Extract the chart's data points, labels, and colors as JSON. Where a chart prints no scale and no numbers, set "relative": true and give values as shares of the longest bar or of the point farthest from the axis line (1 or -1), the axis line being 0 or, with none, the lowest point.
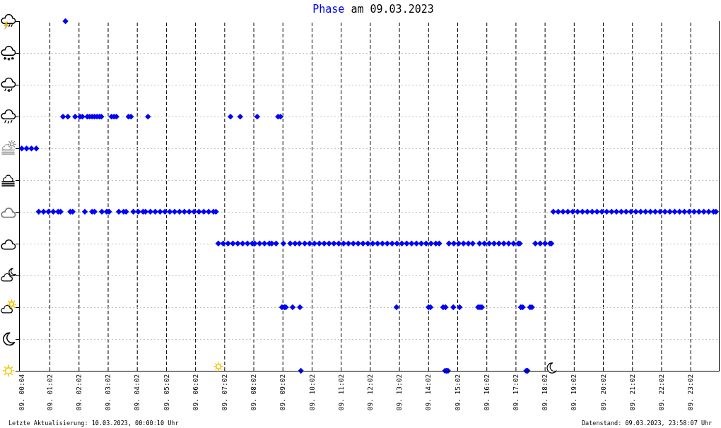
{
  "chart_data": {
    "type": "scatter",
    "title": "am 09.03.2023",
    "annotations": [
      "Letzte Aktualisierung: 10.03.2023, 00:00:10 Uhr",
      "Datenstand: 09.03.2023, 23:58:07 Uhr"
    ],
    "relative": true,
    "grid": true,
    "marker": "diamond",
    "tick_labels": "x",
    "xlim": [
      "2023-03-09T00:00",
      "2023-03-10T00:00"
    ],
    "xticks": [
      {
        "value": "2023-03-09T00:04",
        "label": "09. 00:04"
      },
      {
        "value": "2023-03-09T01:02",
        "label": "09. 01:02"
      },
      {
        "value": "2023-03-09T02:02",
        "label": "09. 02:02"
      },
      {
        "value": "2023-03-09T03:02",
        "label": "09. 03:02"
      },
      {
        "value": "2023-03-09T04:02",
        "label": "09. 04:02"
      },
      {
        "value": "2023-03-09T05:02",
        "label": "09. 05:02"
      },
      {
        "value": "2023-03-09T06:02",
        "label": "09. 06:02"
      },
      {
        "value": "2023-03-09T07:02",
        "label": "09. 07:02"
      },
      {
        "value": "2023-03-09T08:02",
        "label": "09. 08:02"
      },
      {
        "value": "2023-03-09T09:02",
        "label": "09. 09:02"
      },
      {
        "value": "2023-03-09T10:02",
        "label": "09. 10:02"
      },
      {
        "value": "2023-03-09T11:02",
        "label": "09. 11:02"
      },
      {
        "value": "2023-03-09T12:02",
        "label": "09. 12:02"
      },
      {
        "value": "2023-03-09T13:02",
        "label": "09. 13:02"
      },
      {
        "value": "2023-03-09T14:02",
        "label": "09. 14:02"
      },
      {
        "value": "2023-03-09T15:02",
        "label": "09. 15:02"
      },
      {
        "value": "2023-03-09T16:02",
        "label": "09. 16:02"
      },
      {
        "value": "2023-03-09T17:02",
        "label": "09. 17:02"
      },
      {
        "value": "2023-03-09T18:02",
        "label": "09. 18:02"
      },
      {
        "value": "2023-03-09T19:02",
        "label": "09. 19:02"
      },
      {
        "value": "2023-03-09T20:02",
        "label": "09. 20:02"
      },
      {
        "value": "2023-03-09T21:02",
        "label": "09. 21:02"
      },
      {
        "value": "2023-03-09T22:02",
        "label": "09. 22:02"
      },
      {
        "value": "2023-03-09T23:02",
        "label": "09. 23:02"
      }
    ],
    "x": [
      "2023-03-09T00:04",
      "2023-03-09T00:14",
      "2023-03-09T00:24",
      "2023-03-09T00:34",
      "2023-03-09T00:39",
      "2023-03-09T00:49",
      "2023-03-09T00:59",
      "2023-03-09T01:09",
      "2023-03-09T01:19",
      "2023-03-09T01:24",
      "2023-03-09T01:29",
      "2023-03-09T01:34",
      "2023-03-09T01:39",
      "2023-03-09T01:44",
      "2023-03-09T01:49",
      "2023-03-09T01:54",
      "2023-03-09T02:04",
      "2023-03-09T02:09",
      "2023-03-09T02:14",
      "2023-03-09T02:19",
      "2023-03-09T02:24",
      "2023-03-09T02:29",
      "2023-03-09T02:34",
      "2023-03-09T02:39",
      "2023-03-09T02:44",
      "2023-03-09T02:29",
      "2023-03-09T02:34",
      "2023-03-09T02:48",
      "2023-03-09T02:49",
      "2023-03-09T02:59",
      "2023-03-09T03:04",
      "2023-03-09T03:09",
      "2023-03-09T03:14",
      "2023-03-09T03:19",
      "2023-03-09T03:24",
      "2023-03-09T03:34",
      "2023-03-09T03:39",
      "2023-03-09T03:44",
      "2023-03-09T03:49",
      "2023-03-09T03:54",
      "2023-03-09T04:04",
      "2023-03-09T04:14",
      "2023-03-09T04:19",
      "2023-03-09T04:24",
      "2023-03-09T04:29",
      "2023-03-09T04:39",
      "2023-03-09T04:49",
      "2023-03-09T04:59",
      "2023-03-09T05:09",
      "2023-03-09T05:19",
      "2023-03-09T05:29",
      "2023-03-09T05:39",
      "2023-03-09T05:49",
      "2023-03-09T05:59",
      "2023-03-09T06:09",
      "2023-03-09T06:19",
      "2023-03-09T06:29",
      "2023-03-09T06:39",
      "2023-03-09T06:44",
      "2023-03-09T06:49",
      "2023-03-09T06:59",
      "2023-03-09T07:09",
      "2023-03-09T07:14",
      "2023-03-09T07:19",
      "2023-03-09T07:29",
      "2023-03-09T07:34",
      "2023-03-09T07:39",
      "2023-03-09T07:49",
      "2023-03-09T07:59",
      "2023-03-09T08:04",
      "2023-03-09T08:09",
      "2023-03-09T08:14",
      "2023-03-09T08:24",
      "2023-03-09T08:34",
      "2023-03-09T08:39",
      "2023-03-09T08:48",
      "2023-03-09T08:52",
      "2023-03-09T08:57",
      "2023-03-09T09:00",
      "2023-03-09T09:03",
      "2023-03-09T09:05",
      "2023-03-09T09:08",
      "2023-03-09T09:17",
      "2023-03-09T09:22",
      "2023-03-09T09:27",
      "2023-03-09T09:36",
      "2023-03-09T09:37",
      "2023-03-09T09:39",
      "2023-03-09T09:47",
      "2023-03-09T09:57",
      "2023-03-09T10:07",
      "2023-03-09T10:17",
      "2023-03-09T10:27",
      "2023-03-09T10:37",
      "2023-03-09T10:47",
      "2023-03-09T10:57",
      "2023-03-09T11:07",
      "2023-03-09T11:17",
      "2023-03-09T11:27",
      "2023-03-09T11:37",
      "2023-03-09T11:47",
      "2023-03-09T11:57",
      "2023-03-09T12:07",
      "2023-03-09T12:17",
      "2023-03-09T12:27",
      "2023-03-09T12:37",
      "2023-03-09T12:47",
      "2023-03-09T12:56",
      "2023-03-09T12:57",
      "2023-03-09T13:07",
      "2023-03-09T13:17",
      "2023-03-09T13:27",
      "2023-03-09T13:37",
      "2023-03-09T13:47",
      "2023-03-09T13:57",
      "2023-03-09T14:02",
      "2023-03-09T14:06",
      "2023-03-09T14:07",
      "2023-03-09T14:17",
      "2023-03-09T14:24",
      "2023-03-09T14:32",
      "2023-03-09T14:36",
      "2023-03-09T14:37",
      "2023-03-09T14:39",
      "2023-03-09T14:42",
      "2023-03-09T14:44",
      "2023-03-09T14:53",
      "2023-03-09T14:54",
      "2023-03-09T15:04",
      "2023-03-09T15:06",
      "2023-03-09T15:14",
      "2023-03-09T15:24",
      "2023-03-09T15:33",
      "2023-03-09T15:44",
      "2023-03-09T15:47",
      "2023-03-09T15:48",
      "2023-03-09T15:52",
      "2023-03-09T15:57",
      "2023-03-09T16:07",
      "2023-03-09T16:17",
      "2023-03-09T16:27",
      "2023-03-09T16:37",
      "2023-03-09T16:47",
      "2023-03-09T16:57",
      "2023-03-09T17:07",
      "2023-03-09T17:10",
      "2023-03-09T17:12",
      "2023-03-09T17:16",
      "2023-03-09T17:23",
      "2023-03-09T17:26",
      "2023-03-09T17:31",
      "2023-03-09T17:35",
      "2023-03-09T17:42",
      "2023-03-09T17:52",
      "2023-03-09T18:02",
      "2023-03-09T18:12",
      "2023-03-09T18:15",
      "2023-03-09T18:19",
      "2023-03-09T18:29",
      "2023-03-09T18:39",
      "2023-03-09T18:49",
      "2023-03-09T18:59",
      "2023-03-09T19:09",
      "2023-03-09T19:19",
      "2023-03-09T19:29",
      "2023-03-09T19:39",
      "2023-03-09T19:49",
      "2023-03-09T19:59",
      "2023-03-09T20:09",
      "2023-03-09T20:19",
      "2023-03-09T20:29",
      "2023-03-09T20:39",
      "2023-03-09T20:49",
      "2023-03-09T20:59",
      "2023-03-09T21:09",
      "2023-03-09T21:19",
      "2023-03-09T21:29",
      "2023-03-09T21:39",
      "2023-03-09T21:49",
      "2023-03-09T21:59",
      "2023-03-09T22:09",
      "2023-03-09T22:19",
      "2023-03-09T22:29",
      "2023-03-09T22:39",
      "2023-03-09T22:49",
      "2023-03-09T22:59",
      "2023-03-09T23:09",
      "2023-03-09T23:19",
      "2023-03-09T23:29",
      "2023-03-09T23:39",
      "2023-03-09T23:49",
      "2023-03-09T23:54"
    ],
    "series": [
      {
        "name": "Phase",
        "color": "#0000ff",
        "values": [
          0.636,
          0.636,
          0.636,
          0.636,
          0.455,
          0.455,
          0.455,
          0.455,
          0.455,
          0.455,
          0.727,
          1,
          0.727,
          0.455,
          0.455,
          0.727,
          0.727,
          0.727,
          0.455,
          0.727,
          0.727,
          0.455,
          0.455,
          0.727,
          0.727,
          0.727,
          0.727,
          0.727,
          0.455,
          0.455,
          0.455,
          0.727,
          0.727,
          0.727,
          0.455,
          0.455,
          0.455,
          0.727,
          0.727,
          0.455,
          0.455,
          0.455,
          0.455,
          0.727,
          0.455,
          0.455,
          0.455,
          0.455,
          0.455,
          0.455,
          0.455,
          0.455,
          0.455,
          0.455,
          0.455,
          0.455,
          0.455,
          0.455,
          0.455,
          0.364,
          0.364,
          0.364,
          0.727,
          0.364,
          0.364,
          0.727,
          0.364,
          0.364,
          0.364,
          0.364,
          0.727,
          0.364,
          0.364,
          0.364,
          0.364,
          0.364,
          0.727,
          0.727,
          0.182,
          0.364,
          0.182,
          0.182,
          0.364,
          0.182,
          0.364,
          0.364,
          0.182,
          0,
          0.364,
          0.364,
          0.364,
          0.364,
          0.364,
          0.364,
          0.364,
          0.364,
          0.364,
          0.364,
          0.364,
          0.364,
          0.364,
          0.364,
          0.364,
          0.364,
          0.364,
          0.364,
          0.364,
          0.182,
          0.364,
          0.364,
          0.364,
          0.364,
          0.364,
          0.364,
          0.364,
          0.182,
          0.182,
          0.364,
          0.364,
          0.364,
          0.182,
          0,
          0.182,
          0,
          0,
          0.364,
          0.182,
          0.364,
          0.364,
          0.182,
          0.364,
          0.364,
          0.364,
          0.182,
          0.364,
          0.182,
          0.182,
          0.364,
          0.364,
          0.364,
          0.364,
          0.364,
          0.364,
          0.364,
          0.364,
          0.364,
          0.182,
          0.182,
          0,
          0,
          0.182,
          0.182,
          0.364,
          0.364,
          0.364,
          0.364,
          0.364,
          0.455,
          0.455,
          0.455,
          0.455,
          0.455,
          0.455,
          0.455,
          0.455,
          0.455,
          0.455,
          0.455,
          0.455,
          0.455,
          0.455,
          0.455,
          0.455,
          0.455,
          0.455,
          0.455,
          0.455,
          0.455,
          0.455,
          0.455,
          0.455,
          0.455,
          0.455,
          0.455,
          0.455,
          0.455,
          0.455,
          0.455,
          0.455,
          0.455,
          0.455,
          0.455
        ]
      }
    ]
  }
}
